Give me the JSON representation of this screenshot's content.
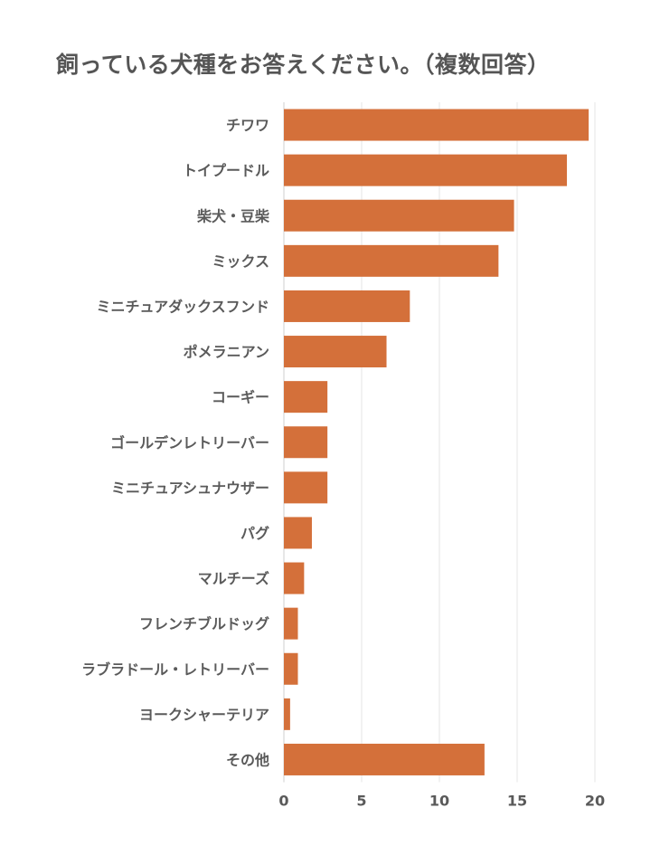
{
  "chart_data": {
    "type": "bar",
    "orientation": "horizontal",
    "title": "飼っている犬種をお答えください。（複数回答）",
    "categories": [
      "チワワ",
      "トイプードル",
      "柴犬・豆柴",
      "ミックス",
      "ミニチュアダックスフンド",
      "ポメラニアン",
      "コーギー",
      "ゴールデンレトリーバー",
      "ミニチュアシュナウザー",
      "パグ",
      "マルチーズ",
      "フレンチブルドッグ",
      "ラブラドール・レトリーバー",
      "ヨークシャーテリア",
      "その他"
    ],
    "values": [
      19.6,
      18.2,
      14.8,
      13.8,
      8.1,
      6.6,
      2.8,
      2.8,
      2.8,
      1.8,
      1.3,
      0.9,
      0.9,
      0.4,
      12.9
    ],
    "xlim": [
      0,
      20
    ],
    "xticks": [
      0,
      5,
      10,
      15,
      20
    ],
    "grid": true,
    "bar_color": "#d4703a",
    "grid_color": "#e6e6e6"
  }
}
